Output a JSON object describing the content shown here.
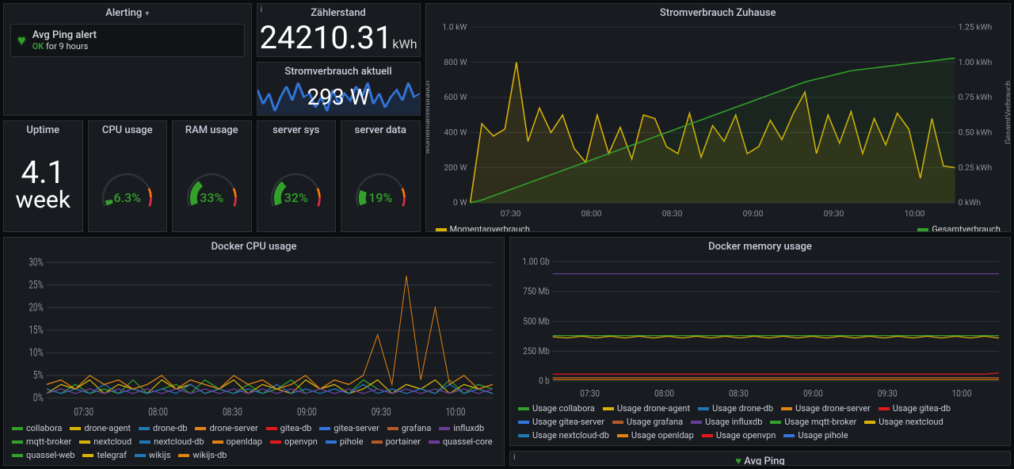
{
  "alerting": {
    "title": "Alerting",
    "item": {
      "title": "Avg Ping alert",
      "status_prefix": "OK",
      "status_suffix": " for 9 hours"
    }
  },
  "meter": {
    "title": "Zählerstand",
    "value": "24210.31",
    "unit": "kWh"
  },
  "power_now": {
    "title": "Stromverbrauch aktuell",
    "value": "293 W",
    "spark_color": "#3274d9",
    "spark": [
      60,
      40,
      55,
      30,
      50,
      65,
      45,
      70,
      50,
      55,
      35,
      50,
      30,
      60,
      40,
      55,
      45,
      65,
      50,
      70,
      40,
      55,
      35,
      50,
      60,
      45,
      70,
      50,
      55
    ]
  },
  "uptime": {
    "title": "Uptime",
    "value": "4.1",
    "unit": "week"
  },
  "gauges": {
    "cpu": {
      "title": "CPU usage",
      "value": 6.3,
      "label": "6.3%",
      "warn": 80,
      "crit": 90
    },
    "ram": {
      "title": "RAM usage",
      "value": 33,
      "label": "33%",
      "warn": 80,
      "crit": 90
    },
    "sys": {
      "title": "server sys",
      "value": 32,
      "label": "32%",
      "warn": 80,
      "crit": 90
    },
    "data": {
      "title": "server data",
      "value": 19,
      "label": "19%",
      "warn": 80,
      "crit": 90
    },
    "colors": {
      "ok": "#33a02c",
      "warn": "#ff780a",
      "crit": "#e02f44",
      "track": "#2c3235",
      "text": "#33a02c"
    }
  },
  "power_chart": {
    "title": "Stromverbrauch Zuhause",
    "y1_label": "Momentanverbrauch",
    "y2_label": "GesamtVerbrauch",
    "y1_ticks": [
      "0 W",
      "200 W",
      "400 W",
      "600 W",
      "800 W",
      "1.0 kW"
    ],
    "y2_ticks": [
      "0 kWh",
      "0.25 kWh",
      "0.50 kWh",
      "0.75 kWh",
      "1.00 kWh",
      "1.25 kWh"
    ],
    "x_ticks": [
      "07:30",
      "08:00",
      "08:30",
      "09:00",
      "09:30",
      "10:00"
    ],
    "moment_color": "#d9b208",
    "cumul_color": "#33a02c",
    "moment": [
      0,
      450,
      380,
      420,
      800,
      350,
      540,
      400,
      500,
      310,
      230,
      500,
      280,
      430,
      250,
      500,
      480,
      320,
      280,
      510,
      260,
      440,
      350,
      500,
      280,
      320,
      470,
      360,
      510,
      630,
      280,
      500,
      340,
      520,
      280,
      480,
      330,
      510,
      420,
      140,
      480,
      210,
      200
    ],
    "cumul": [
      0,
      0.02,
      0.05,
      0.08,
      0.11,
      0.14,
      0.17,
      0.2,
      0.23,
      0.26,
      0.29,
      0.32,
      0.35,
      0.38,
      0.41,
      0.44,
      0.47,
      0.5,
      0.53,
      0.56,
      0.59,
      0.62,
      0.65,
      0.68,
      0.71,
      0.74,
      0.77,
      0.8,
      0.83,
      0.86,
      0.88,
      0.9,
      0.92,
      0.94,
      0.95,
      0.96,
      0.97,
      0.98,
      0.99,
      1.0,
      1.01,
      1.02,
      1.03
    ],
    "legend": [
      {
        "label": "Momentanverbrauch",
        "color": "#d9b208"
      },
      {
        "label": "Gesamtverbrauch",
        "color": "#33a02c"
      }
    ]
  },
  "docker_cpu": {
    "title": "Docker CPU usage",
    "y_ticks": [
      "0%",
      "5%",
      "10%",
      "15%",
      "20%",
      "25%",
      "30%"
    ],
    "x_ticks": [
      "07:30",
      "08:00",
      "08:30",
      "09:00",
      "09:30",
      "10:00"
    ],
    "series": [
      {
        "name": "collabora",
        "color": "#33a02c",
        "d": [
          2,
          1,
          3,
          1,
          2,
          1,
          4,
          1,
          2,
          3,
          1,
          4,
          2,
          1,
          3,
          1,
          2,
          4,
          1,
          2,
          3,
          1,
          4,
          2,
          1,
          3,
          2,
          1,
          4,
          1,
          3,
          2
        ]
      },
      {
        "name": "drone-agent",
        "color": "#d9b208",
        "d": [
          1,
          3,
          2,
          4,
          1,
          3,
          2,
          1,
          4,
          2,
          3,
          1,
          2,
          4,
          1,
          3,
          2,
          1,
          4,
          2,
          3,
          1,
          2,
          4,
          1,
          3,
          2,
          4,
          1,
          3,
          2,
          1
        ]
      },
      {
        "name": "drone-db",
        "color": "#1f78b4",
        "d": [
          2,
          1,
          2,
          1,
          3,
          1,
          2,
          1,
          2,
          1,
          3,
          1,
          2,
          1,
          2,
          1,
          3,
          1,
          2,
          1,
          2,
          1,
          3,
          1,
          2,
          1,
          2,
          1,
          3,
          1,
          2,
          1
        ]
      },
      {
        "name": "nextcloud",
        "color": "#e08214",
        "d": [
          3,
          4,
          2,
          5,
          3,
          4,
          2,
          3,
          5,
          2,
          4,
          3,
          2,
          5,
          3,
          4,
          2,
          3,
          5,
          2,
          4,
          3,
          5,
          14,
          3,
          27,
          4,
          20,
          3,
          5,
          2,
          3
        ]
      },
      {
        "name": "influxdb",
        "color": "#6a3d9a",
        "d": [
          1,
          2,
          1,
          2,
          1,
          2,
          1,
          2,
          1,
          2,
          1,
          2,
          1,
          2,
          1,
          2,
          1,
          2,
          1,
          2,
          1,
          2,
          1,
          2,
          1,
          2,
          1,
          2,
          1,
          2,
          1,
          2
        ]
      }
    ],
    "legend": [
      {
        "label": "collabora",
        "color": "#33a02c"
      },
      {
        "label": "drone-agent",
        "color": "#d9b208"
      },
      {
        "label": "drone-db",
        "color": "#1f78b4"
      },
      {
        "label": "drone-server",
        "color": "#e08214"
      },
      {
        "label": "gitea-db",
        "color": "#e31a1c"
      },
      {
        "label": "gitea-server",
        "color": "#3274d9"
      },
      {
        "label": "grafana",
        "color": "#b15928"
      },
      {
        "label": "influxdb",
        "color": "#6a3d9a"
      },
      {
        "label": "mqtt-broker",
        "color": "#33a02c"
      },
      {
        "label": "nextcloud",
        "color": "#d9b208"
      },
      {
        "label": "nextcloud-db",
        "color": "#1f78b4"
      },
      {
        "label": "openldap",
        "color": "#e08214"
      },
      {
        "label": "openvpn",
        "color": "#e31a1c"
      },
      {
        "label": "pihole",
        "color": "#3274d9"
      },
      {
        "label": "portainer",
        "color": "#b15928"
      },
      {
        "label": "quassel-core",
        "color": "#6a3d9a"
      },
      {
        "label": "quassel-web",
        "color": "#33a02c"
      },
      {
        "label": "telegraf",
        "color": "#d9b208"
      },
      {
        "label": "wikijs",
        "color": "#1f78b4"
      },
      {
        "label": "wikijs-db",
        "color": "#e08214"
      }
    ]
  },
  "docker_mem": {
    "title": "Docker memory usage",
    "y_ticks": [
      "0 b",
      "250 Mb",
      "500 Mb",
      "750 Mb",
      "1.00 Gb"
    ],
    "x_ticks": [
      "07:30",
      "08:00",
      "08:30",
      "09:00",
      "09:30",
      "10:00"
    ],
    "series": [
      {
        "name": "Usage influxdb",
        "color": "#6a3d9a",
        "d": [
          920,
          920,
          920,
          920,
          920,
          920,
          920,
          920,
          920,
          920,
          920,
          920,
          920,
          920,
          920,
          920,
          920,
          920,
          920,
          920,
          920,
          920,
          920,
          920,
          920,
          920,
          920,
          920,
          920,
          920,
          920,
          920
        ]
      },
      {
        "name": "Usage collabora",
        "color": "#33a02c",
        "d": [
          390,
          390,
          390,
          390,
          390,
          390,
          390,
          390,
          390,
          390,
          390,
          390,
          390,
          390,
          390,
          390,
          390,
          390,
          390,
          390,
          390,
          390,
          390,
          390,
          390,
          390,
          390,
          390,
          390,
          390,
          390,
          390
        ]
      },
      {
        "name": "Usage nextcloud",
        "color": "#d9b208",
        "d": [
          380,
          370,
          385,
          370,
          385,
          370,
          385,
          370,
          385,
          370,
          385,
          370,
          385,
          370,
          385,
          370,
          385,
          370,
          385,
          370,
          385,
          370,
          385,
          370,
          385,
          370,
          385,
          370,
          385,
          370,
          385,
          370
        ]
      },
      {
        "name": "Usage gitea-db",
        "color": "#e31a1c",
        "d": [
          60,
          60,
          60,
          60,
          60,
          60,
          60,
          60,
          60,
          60,
          60,
          60,
          60,
          60,
          60,
          60,
          60,
          60,
          60,
          60,
          60,
          60,
          60,
          60,
          60,
          60,
          60,
          60,
          60,
          60,
          60,
          70
        ]
      },
      {
        "name": "Usage grafana",
        "color": "#b15928",
        "d": [
          30,
          30,
          30,
          30,
          30,
          30,
          30,
          30,
          30,
          30,
          30,
          30,
          30,
          30,
          30,
          30,
          30,
          30,
          30,
          30,
          30,
          30,
          30,
          30,
          30,
          30,
          30,
          30,
          30,
          30,
          30,
          30
        ]
      },
      {
        "name": "Usage openvpn",
        "color": "#e08214",
        "d": [
          15,
          15,
          15,
          15,
          15,
          15,
          15,
          15,
          15,
          15,
          15,
          15,
          15,
          15,
          15,
          15,
          15,
          15,
          15,
          15,
          15,
          15,
          15,
          15,
          15,
          15,
          15,
          15,
          15,
          15,
          15,
          15
        ]
      }
    ],
    "legend": [
      {
        "label": "Usage collabora",
        "color": "#33a02c"
      },
      {
        "label": "Usage drone-agent",
        "color": "#d9b208"
      },
      {
        "label": "Usage drone-db",
        "color": "#1f78b4"
      },
      {
        "label": "Usage drone-server",
        "color": "#e08214"
      },
      {
        "label": "Usage gitea-db",
        "color": "#e31a1c"
      },
      {
        "label": "Usage gitea-server",
        "color": "#3274d9"
      },
      {
        "label": "Usage grafana",
        "color": "#b15928"
      },
      {
        "label": "Usage influxdb",
        "color": "#6a3d9a"
      },
      {
        "label": "Usage mqtt-broker",
        "color": "#33a02c"
      },
      {
        "label": "Usage nextcloud",
        "color": "#d9b208"
      },
      {
        "label": "Usage nextcloud-db",
        "color": "#1f78b4"
      },
      {
        "label": "Usage openldap",
        "color": "#e08214"
      },
      {
        "label": "Usage openvpn",
        "color": "#e31a1c"
      },
      {
        "label": "Usage pihole",
        "color": "#3274d9"
      }
    ]
  },
  "avg_ping": {
    "title": "Avg Ping"
  }
}
